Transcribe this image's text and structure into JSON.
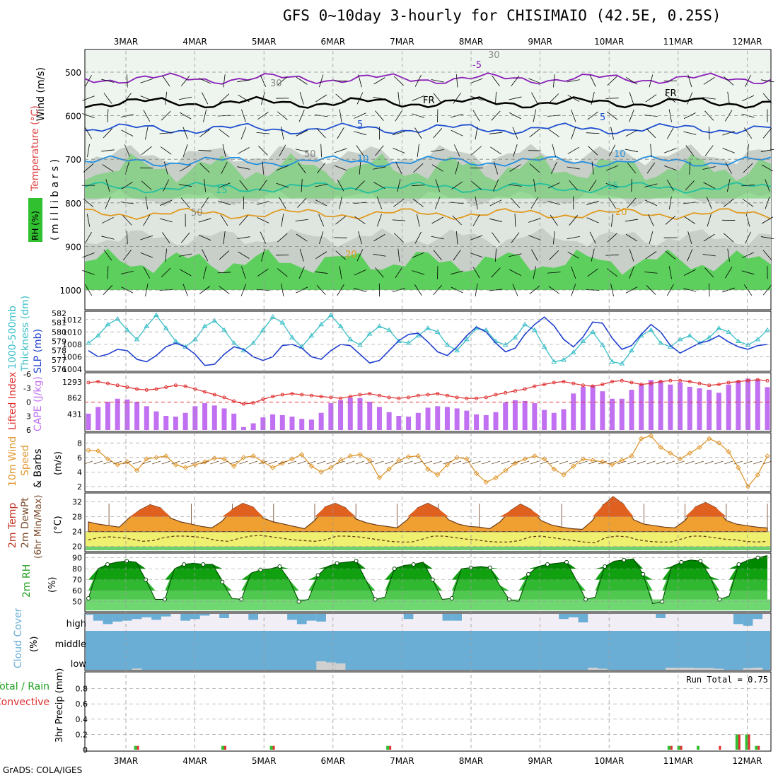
{
  "title": "GFS 0~10day 3-hourly for CHISIMAIO (42.5E, 0.25S)",
  "footer": "GrADS: COLA/IGES",
  "dates": [
    "3MAR",
    "4MAR",
    "5MAR",
    "6MAR",
    "7MAR",
    "8MAR",
    "9MAR",
    "10MAR",
    "11MAR",
    "12MAR"
  ],
  "upper_panel": {
    "side_labels": [
      "Wind (m/s)",
      "Temperature (°C)",
      "RH (%)",
      "( m i l l i b a r s )"
    ],
    "y_ticks": [
      "500",
      "600",
      "700",
      "800",
      "900",
      "1000"
    ],
    "contour_labels": [
      "-5",
      "FR",
      "FR",
      "5",
      "5",
      "10",
      "10",
      "15",
      "15",
      "20",
      "20",
      "30",
      "30",
      "50",
      "50"
    ]
  },
  "thickness_panel": {
    "side_labels": [
      "1000-500mb",
      "Thickness (dm)",
      "SLP (mb)"
    ],
    "left_ticks": [
      "582",
      "581",
      "580",
      "579",
      "578",
      "577",
      "576"
    ],
    "right_ticks": [
      "1012",
      "1010",
      "1008",
      "1006",
      "1004"
    ]
  },
  "cape_panel": {
    "side_labels": [
      "Lifted Index",
      "CAPE (J/kg)"
    ],
    "left_ticks": [
      "-6",
      "-3",
      "0",
      "3",
      "6"
    ],
    "right_ticks": [
      "1293",
      "862",
      "431"
    ]
  },
  "wind_panel": {
    "side_labels": [
      "10m Wind",
      "Speed",
      "& Barbs",
      "(m/s)"
    ],
    "y_ticks": [
      "8",
      "6",
      "4",
      "2"
    ]
  },
  "temp_panel": {
    "side_labels": [
      "2m Temp",
      "2m DewPt",
      "(6hr Min/Max)",
      "(°C)"
    ],
    "y_ticks": [
      "32",
      "28",
      "24",
      "20"
    ]
  },
  "rh_panel": {
    "side_labels": [
      "2m RH",
      "(%)"
    ],
    "y_ticks": [
      "90",
      "80",
      "70",
      "60",
      "50"
    ]
  },
  "cloud_panel": {
    "side_labels": [
      "Cloud Cover",
      "(%)"
    ],
    "row_labels": [
      "high",
      "middle",
      "low"
    ]
  },
  "precip_panel": {
    "side_labels": [
      "Total / Rain",
      "Convective",
      "3hr Precip (mm)"
    ],
    "y_ticks": [
      "0.8",
      "0.6",
      "0.4",
      "0.2",
      "0"
    ],
    "run_total": "Run Total = 0.75"
  },
  "colors": {
    "rh_green": "#5ccf5c",
    "rh_gray": "#c8cec8",
    "slp": "#1f3fcf",
    "thickness": "#3bbfc8",
    "lifted_index": "#e03030",
    "cape": "#c070f0",
    "wind": "#e09830",
    "temp_fill": "#f0a030",
    "dewpt_fill": "#f0f070",
    "rh2m": "#20b020",
    "cloud": "#6aaed6",
    "precip_total": "#30c030",
    "precip_conv": "#e03030"
  },
  "chart_data": [
    {
      "type": "line",
      "name_hint": "thickness_slp",
      "x_step_hours": 3,
      "series": [
        {
          "axis": "left",
          "values": [
            578.8,
            579.6,
            580.8,
            581.4,
            580.2,
            579.2,
            580.6,
            581.8,
            580.4,
            579.0,
            578.4,
            579.2,
            580.6,
            581.2,
            580.2,
            578.8,
            578.0,
            578.8,
            580.2,
            581.6,
            581.0,
            579.4,
            578.4,
            579.6,
            580.8,
            581.8,
            580.6,
            579.2,
            578.6,
            579.8,
            580.6,
            580.2,
            579.0,
            578.8,
            579.6,
            580.4,
            580.0,
            578.6,
            578.0,
            579.2,
            580.4,
            580.2,
            579.0,
            578.6,
            579.4,
            580.8,
            580.2,
            578.4,
            576.8,
            577.0,
            577.8,
            579.0,
            580.0,
            578.6,
            576.8,
            576.6,
            578.0,
            579.6,
            580.2,
            578.8,
            578.4,
            579.2,
            579.6,
            578.8,
            579.4,
            580.4,
            580.0,
            579.0,
            578.6,
            579.2,
            580.2
          ]
        },
        {
          "axis": "right",
          "values": [
            1007.0,
            1006.0,
            1006.4,
            1007.2,
            1007.0,
            1005.6,
            1005.2,
            1006.2,
            1007.6,
            1008.2,
            1007.6,
            1006.4,
            1004.6,
            1004.8,
            1006.4,
            1007.6,
            1007.2,
            1006.0,
            1005.4,
            1006.0,
            1007.8,
            1008.0,
            1007.4,
            1006.0,
            1005.6,
            1007.0,
            1008.0,
            1007.8,
            1006.4,
            1005.0,
            1005.4,
            1007.0,
            1008.6,
            1009.6,
            1009.8,
            1008.4,
            1006.8,
            1006.2,
            1007.6,
            1009.4,
            1010.8,
            1010.0,
            1008.2,
            1006.8,
            1007.4,
            1009.6,
            1011.2,
            1012.4,
            1011.0,
            1008.8,
            1007.6,
            1009.2,
            1011.6,
            1011.4,
            1009.0,
            1007.2,
            1007.8,
            1009.6,
            1011.2,
            1010.0,
            1007.8,
            1006.6,
            1007.4,
            1008.2,
            1008.6,
            1009.4,
            1008.4,
            1007.6,
            1007.2,
            1007.8,
            1008.0
          ]
        }
      ]
    },
    {
      "type": "bar",
      "name_hint": "cape_lifted_index",
      "x_step_hours": 3,
      "series": [
        {
          "kind": "line",
          "values": [
            -4.2,
            -4.4,
            -4.0,
            -3.6,
            -3.2,
            -2.8,
            -2.6,
            -2.8,
            -3.2,
            -3.6,
            -3.4,
            -2.8,
            -2.2,
            -1.6,
            -1.0,
            -0.2,
            0.4,
            0.2,
            -0.6,
            -1.2,
            -1.6,
            -1.8,
            -1.6,
            -1.4,
            -1.2,
            -1.0,
            -0.8,
            -1.2,
            -1.6,
            -1.8,
            -1.4,
            -1.0,
            -0.8,
            -1.0,
            -1.4,
            -1.6,
            -1.8,
            -1.4,
            -1.0,
            -0.8,
            -0.8,
            -1.0,
            -1.6,
            -2.0,
            -2.4,
            -2.8,
            -3.4,
            -3.8,
            -4.2,
            -4.4,
            -4.0,
            -3.6,
            -3.4,
            -3.8,
            -4.4,
            -4.6,
            -4.2,
            -3.8,
            -4.0,
            -4.4,
            -4.6,
            -4.6,
            -4.4,
            -4.0,
            -3.6,
            -3.8,
            -4.2,
            -4.4,
            -4.6,
            -4.8,
            -4.6
          ]
        },
        {
          "kind": "bar",
          "values": [
            440,
            620,
            760,
            840,
            820,
            760,
            640,
            500,
            380,
            360,
            460,
            640,
            720,
            660,
            580,
            440,
            80,
            180,
            340,
            420,
            400,
            360,
            300,
            280,
            460,
            720,
            800,
            870,
            860,
            760,
            620,
            480,
            380,
            360,
            460,
            600,
            640,
            620,
            580,
            520,
            420,
            400,
            480,
            740,
            800,
            780,
            720,
            540,
            460,
            560,
            980,
            1160,
            1200,
            1040,
            840,
            840,
            1080,
            1220,
            1340,
            1320,
            1220,
            1280,
            1160,
            1120,
            1080,
            1000,
            1220,
            1320,
            1380,
            1360,
            1150
          ]
        }
      ]
    },
    {
      "type": "line",
      "name_hint": "wind_speed",
      "x_step_hours": 3,
      "values": [
        7.0,
        6.9,
        5.8,
        5.0,
        5.4,
        4.2,
        5.8,
        6.0,
        6.2,
        5.0,
        4.6,
        5.0,
        5.4,
        5.9,
        5.8,
        4.8,
        6.0,
        6.2,
        5.4,
        4.6,
        5.2,
        5.8,
        6.4,
        4.8,
        4.0,
        4.6,
        5.6,
        6.2,
        6.4,
        5.6,
        3.2,
        4.4,
        5.6,
        6.1,
        6.2,
        4.4,
        3.6,
        5.0,
        6.0,
        5.8,
        3.8,
        2.6,
        3.2,
        4.2,
        5.2,
        5.8,
        6.2,
        5.8,
        4.4,
        3.6,
        4.8,
        5.8,
        5.6,
        5.4,
        5.0,
        5.6,
        6.2,
        8.6,
        9.0,
        7.4,
        6.6,
        5.8,
        6.6,
        7.4,
        8.6,
        8.0,
        6.8,
        4.6,
        2.0,
        3.6,
        6.2
      ]
    },
    {
      "type": "area",
      "name_hint": "temp_dewpt",
      "x_step_hours": 3,
      "series": [
        {
          "kind": "temp",
          "values": [
            26.6,
            26.0,
            25.6,
            25.2,
            27.8,
            29.8,
            31.2,
            30.4,
            27.6,
            26.6,
            26.0,
            25.4,
            25.0,
            26.8,
            30.0,
            31.6,
            30.6,
            27.6,
            26.6,
            26.0,
            25.4,
            24.8,
            27.0,
            30.6,
            31.6,
            30.4,
            27.4,
            26.4,
            25.8,
            25.4,
            25.0,
            27.2,
            30.4,
            31.6,
            30.2,
            27.2,
            26.0,
            25.4,
            25.2,
            24.8,
            26.6,
            29.6,
            31.4,
            30.0,
            27.0,
            25.8,
            25.2,
            24.8,
            24.6,
            27.0,
            31.0,
            33.4,
            31.4,
            27.2,
            26.0,
            25.6,
            25.2,
            25.0,
            27.0,
            30.6,
            31.8,
            30.4,
            27.0,
            26.0,
            25.6,
            25.2,
            25.0
          ]
        },
        {
          "kind": "dewpt",
          "values": [
            21.8,
            22.4,
            22.6,
            22.4,
            22.0,
            21.4,
            21.6,
            22.4,
            22.8,
            22.8,
            22.6,
            22.2,
            21.6,
            21.4,
            22.2,
            22.8,
            23.0,
            22.6,
            22.2,
            21.8,
            21.6,
            21.4,
            21.8,
            22.8,
            22.8,
            22.6,
            22.2,
            21.8,
            21.4,
            21.2,
            21.2,
            22.0,
            22.8,
            22.8,
            22.4,
            22.0,
            21.8,
            21.4,
            21.2,
            21.2,
            21.6,
            22.6,
            22.8,
            22.4,
            22.0,
            21.6,
            21.2,
            21.0,
            22.4,
            22.8,
            22.6,
            21.8,
            21.4,
            21.2,
            21.2,
            22.0,
            22.8,
            22.8,
            22.4,
            22.0,
            21.8,
            21.4,
            21.2,
            21.4
          ]
        }
      ]
    },
    {
      "type": "area",
      "name_hint": "rh_2m",
      "x_step_hours": 3,
      "values": [
        53,
        80,
        84,
        86,
        87,
        86,
        70,
        52,
        52,
        80,
        84,
        85,
        84,
        84,
        68,
        53,
        52,
        76,
        79,
        80,
        82,
        70,
        50,
        52,
        74,
        82,
        85,
        86,
        87,
        70,
        52,
        54,
        80,
        83,
        84,
        86,
        70,
        52,
        53,
        80,
        81,
        82,
        81,
        65,
        52,
        50,
        75,
        82,
        84,
        85,
        86,
        70,
        52,
        54,
        82,
        87,
        88,
        89,
        75,
        48,
        50,
        82,
        86,
        88,
        87,
        73,
        52,
        55,
        84,
        88,
        90,
        92
      ]
    },
    {
      "type": "bar",
      "name_hint": "cloud_cover",
      "x_step_hours": 3,
      "series": [
        {
          "name": "high",
          "values": [
            5,
            40,
            60,
            45,
            40,
            30,
            20,
            35,
            15,
            0,
            40,
            30,
            10,
            0,
            25,
            0,
            0,
            35,
            0,
            0,
            0,
            35,
            60,
            40,
            45,
            0,
            0,
            0,
            0,
            0,
            0,
            0,
            0,
            30,
            0,
            0,
            0,
            40,
            40,
            0,
            0,
            0,
            0,
            0,
            0,
            0,
            0,
            0,
            0,
            30,
            20,
            50,
            0,
            0,
            0,
            0,
            0,
            0,
            0,
            25,
            0,
            0,
            0,
            0,
            0,
            0,
            0,
            60,
            70,
            30,
            0
          ]
        },
        {
          "name": "low",
          "values": [
            0,
            0,
            0,
            0,
            0,
            6,
            0,
            0,
            0,
            0,
            0,
            0,
            0,
            0,
            0,
            0,
            0,
            0,
            0,
            0,
            0,
            0,
            0,
            0,
            40,
            35,
            30,
            0,
            0,
            0,
            0,
            0,
            0,
            0,
            0,
            0,
            0,
            0,
            0,
            0,
            0,
            0,
            0,
            0,
            0,
            0,
            0,
            0,
            0,
            0,
            0,
            0,
            10,
            5,
            0,
            0,
            0,
            0,
            0,
            0,
            10,
            10,
            10,
            8,
            8,
            5,
            0,
            0,
            8,
            10,
            0
          ]
        }
      ]
    },
    {
      "type": "bar",
      "name_hint": "precip_3hr",
      "x_step_hours": 3,
      "ylim": [
        0,
        1.0
      ],
      "series": [
        {
          "name": "total",
          "values": [
            0,
            0,
            0,
            0,
            0,
            0.05,
            0,
            0,
            0,
            0,
            0,
            0,
            0,
            0,
            0.05,
            0,
            0,
            0,
            0,
            0.05,
            0,
            0,
            0,
            0,
            0,
            0,
            0,
            0,
            0,
            0,
            0,
            0.05,
            0,
            0,
            0,
            0,
            0,
            0,
            0,
            0,
            0,
            0,
            0,
            0,
            0,
            0,
            0,
            0,
            0,
            0,
            0,
            0,
            0,
            0,
            0,
            0,
            0,
            0,
            0,
            0,
            0.05,
            0.05,
            0,
            0.05,
            0,
            0,
            0,
            0.2,
            0.2,
            0.05,
            0
          ]
        },
        {
          "name": "convective",
          "values": [
            0,
            0,
            0,
            0,
            0,
            0.05,
            0,
            0,
            0,
            0,
            0,
            0,
            0,
            0,
            0.05,
            0,
            0,
            0,
            0,
            0.05,
            0,
            0,
            0,
            0,
            0,
            0,
            0,
            0,
            0,
            0,
            0,
            0.05,
            0,
            0,
            0,
            0,
            0,
            0,
            0,
            0,
            0,
            0,
            0,
            0,
            0,
            0,
            0,
            0,
            0,
            0,
            0,
            0,
            0,
            0,
            0,
            0,
            0,
            0,
            0,
            0,
            0.05,
            0.05,
            0,
            0,
            0,
            0.05,
            0,
            0.2,
            0.2,
            0.05,
            0
          ]
        }
      ]
    }
  ]
}
